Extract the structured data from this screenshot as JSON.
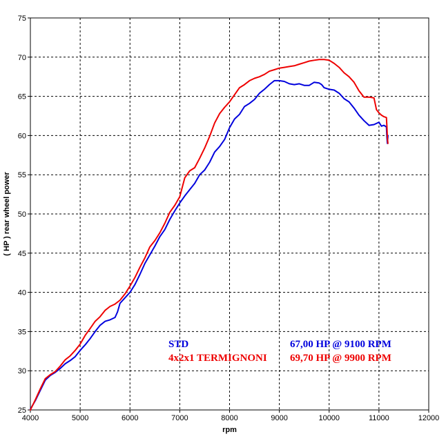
{
  "chart_data": {
    "type": "line",
    "xlabel": "rpm",
    "ylabel": "( HP )   rear  wheel  power",
    "xlim": [
      4000,
      12000
    ],
    "ylim": [
      25,
      75
    ],
    "xticks": [
      4000,
      5000,
      6000,
      7000,
      8000,
      9000,
      10000,
      11000,
      12000
    ],
    "yticks": [
      25,
      30,
      35,
      40,
      45,
      50,
      55,
      60,
      65,
      70,
      75
    ],
    "grid": true,
    "series": [
      {
        "name": "STD",
        "summary": "67,00 HP @ 9100 RPM",
        "color": "#0000dd",
        "x": [
          4000,
          4100,
          4200,
          4300,
          4400,
          4500,
          4600,
          4700,
          4800,
          4900,
          5000,
          5100,
          5200,
          5300,
          5400,
          5500,
          5600,
          5700,
          5750,
          5800,
          5900,
          6000,
          6100,
          6200,
          6300,
          6400,
          6500,
          6600,
          6700,
          6800,
          6900,
          7000,
          7100,
          7200,
          7300,
          7400,
          7500,
          7600,
          7700,
          7800,
          7900,
          8000,
          8100,
          8200,
          8300,
          8400,
          8500,
          8600,
          8700,
          8800,
          8900,
          9000,
          9100,
          9200,
          9300,
          9400,
          9500,
          9600,
          9700,
          9800,
          9850,
          9900,
          10000,
          10100,
          10200,
          10300,
          10400,
          10500,
          10600,
          10700,
          10800,
          10900,
          11000,
          11050,
          11100,
          11150,
          11160,
          11170,
          11180
        ],
        "y": [
          25.1,
          26.2,
          27.5,
          28.8,
          29.4,
          29.8,
          30.3,
          30.9,
          31.3,
          31.8,
          32.6,
          33.3,
          34.1,
          35.0,
          35.8,
          36.3,
          36.5,
          36.8,
          37.5,
          38.6,
          39.3,
          40.0,
          41.0,
          42.3,
          43.7,
          44.8,
          45.9,
          47.1,
          48.0,
          49.3,
          50.4,
          51.4,
          52.3,
          53.1,
          53.9,
          55.0,
          55.6,
          56.6,
          57.9,
          58.6,
          59.5,
          61.0,
          62.1,
          62.7,
          63.7,
          64.1,
          64.6,
          65.4,
          65.9,
          66.5,
          67.0,
          67.0,
          66.9,
          66.6,
          66.5,
          66.6,
          66.4,
          66.4,
          66.8,
          66.7,
          66.5,
          66.1,
          65.9,
          65.8,
          65.4,
          64.7,
          64.3,
          63.5,
          62.6,
          61.9,
          61.3,
          61.4,
          61.7,
          61.2,
          61.3,
          61.1,
          59.8,
          59.0,
          60.0
        ]
      },
      {
        "name": "4x2x1 TERMIGNONI",
        "summary": "69,70 HP @ 9900 RPM",
        "color": "#ee0000",
        "x": [
          4000,
          4100,
          4200,
          4300,
          4400,
          4500,
          4600,
          4700,
          4800,
          4900,
          5000,
          5100,
          5200,
          5300,
          5400,
          5500,
          5600,
          5700,
          5800,
          5900,
          6000,
          6100,
          6200,
          6300,
          6400,
          6500,
          6600,
          6700,
          6800,
          6900,
          7000,
          7100,
          7200,
          7300,
          7400,
          7500,
          7600,
          7700,
          7800,
          7900,
          8000,
          8100,
          8200,
          8300,
          8400,
          8500,
          8600,
          8700,
          8800,
          8900,
          9000,
          9100,
          9200,
          9300,
          9400,
          9500,
          9600,
          9700,
          9800,
          9900,
          10000,
          10100,
          10200,
          10300,
          10400,
          10500,
          10600,
          10700,
          10800,
          10900,
          10950,
          11000,
          11050,
          11100,
          11150,
          11160,
          11170,
          11180
        ],
        "y": [
          25.0,
          26.3,
          27.7,
          29.0,
          29.5,
          29.9,
          30.6,
          31.4,
          31.9,
          32.6,
          33.4,
          34.5,
          35.4,
          36.3,
          36.9,
          37.7,
          38.2,
          38.5,
          39.0,
          39.8,
          40.8,
          41.9,
          43.2,
          44.4,
          45.8,
          46.6,
          47.6,
          48.8,
          50.2,
          51.1,
          52.2,
          54.6,
          55.5,
          55.9,
          57.1,
          58.4,
          59.9,
          61.6,
          62.8,
          63.6,
          64.3,
          65.2,
          66.1,
          66.5,
          67.0,
          67.3,
          67.5,
          67.8,
          68.2,
          68.4,
          68.6,
          68.7,
          68.8,
          68.9,
          69.1,
          69.3,
          69.5,
          69.6,
          69.7,
          69.7,
          69.6,
          69.2,
          68.7,
          68.0,
          67.5,
          66.8,
          65.7,
          64.9,
          64.9,
          64.8,
          63.3,
          62.9,
          62.6,
          62.4,
          62.3,
          61.2,
          59.7,
          59.0
        ]
      }
    ]
  }
}
